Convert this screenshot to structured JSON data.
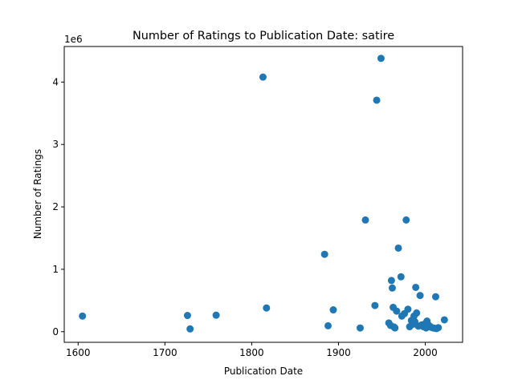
{
  "chart_data": {
    "type": "scatter",
    "title": "Number of Ratings to Publication Date: satire",
    "xlabel": "Publication Date",
    "ylabel": "Number of Ratings",
    "y_offset_label": "1e6",
    "xlim": [
      1584,
      2043
    ],
    "ylim": [
      -170000,
      4570000
    ],
    "x_ticks": [
      1600,
      1700,
      1800,
      1900,
      2000
    ],
    "y_ticks": [
      0,
      1000000,
      2000000,
      3000000,
      4000000
    ],
    "y_tick_labels": [
      "0",
      "1",
      "2",
      "3",
      "4"
    ],
    "grid": false,
    "legend": "none",
    "marker_color": "#1f77b4",
    "series": [
      {
        "points": [
          [
            1605,
            250000
          ],
          [
            1726,
            260000
          ],
          [
            1729,
            45000
          ],
          [
            1759,
            265000
          ],
          [
            1813,
            4080000
          ],
          [
            1817,
            380000
          ],
          [
            1884,
            1240000
          ],
          [
            1888,
            95000
          ],
          [
            1894,
            350000
          ],
          [
            1925,
            60000
          ],
          [
            1931,
            1790000
          ],
          [
            1942,
            420000
          ],
          [
            1944,
            3710000
          ],
          [
            1949,
            4380000
          ],
          [
            1958,
            140000
          ],
          [
            1960,
            100000
          ],
          [
            1961,
            820000
          ],
          [
            1962,
            700000
          ],
          [
            1963,
            390000
          ],
          [
            1964,
            75000
          ],
          [
            1965,
            60000
          ],
          [
            1967,
            330000
          ],
          [
            1969,
            1340000
          ],
          [
            1972,
            880000
          ],
          [
            1973,
            250000
          ],
          [
            1976,
            290000
          ],
          [
            1978,
            1790000
          ],
          [
            1980,
            360000
          ],
          [
            1982,
            80000
          ],
          [
            1984,
            180000
          ],
          [
            1986,
            120000
          ],
          [
            1987,
            250000
          ],
          [
            1988,
            160000
          ],
          [
            1989,
            710000
          ],
          [
            1990,
            300000
          ],
          [
            1992,
            90000
          ],
          [
            1994,
            580000
          ],
          [
            1996,
            110000
          ],
          [
            1998,
            80000
          ],
          [
            2000,
            130000
          ],
          [
            2001,
            60000
          ],
          [
            2002,
            170000
          ],
          [
            2003,
            120000
          ],
          [
            2005,
            90000
          ],
          [
            2007,
            70000
          ],
          [
            2009,
            60000
          ],
          [
            2011,
            55000
          ],
          [
            2012,
            560000
          ],
          [
            2013,
            50000
          ],
          [
            2015,
            65000
          ],
          [
            2022,
            190000
          ]
        ]
      }
    ]
  }
}
